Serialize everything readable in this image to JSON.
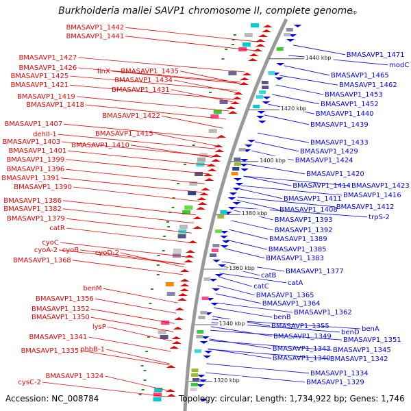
{
  "title": "Burkholderia mallei SAVP1 chromosome II, complete genome",
  "title_unit": "bp",
  "footer": {
    "accession": "Accession: NC_008784",
    "summary": "Topology: circular; Length: 1,734,922 bp; Genes: 1,746"
  },
  "colors": {
    "forward": "#ee0000",
    "reverse": "#0000ee",
    "backbone": "#999999",
    "tick": "#228822"
  },
  "scale_ticks": [
    {
      "label": "1440 kbp",
      "xm": 0.743,
      "ym": 0.148
    },
    {
      "label": "1420 kbp",
      "xm": 0.683,
      "ym": 0.272
    },
    {
      "label": "1400 kbp",
      "xm": 0.632,
      "ym": 0.398
    },
    {
      "label": "1380 kbp",
      "xm": 0.588,
      "ym": 0.527
    },
    {
      "label": "1360 kbp",
      "xm": 0.557,
      "ym": 0.66
    },
    {
      "label": "1340 kbp",
      "xm": 0.533,
      "ym": 0.795
    },
    {
      "label": "1320 kbp",
      "xm": 0.52,
      "ym": 0.933
    }
  ],
  "left_labels": [
    {
      "text": "BMASAVP1_1442",
      "xm": 0.302,
      "ym": 0.072
    },
    {
      "text": "BMASAVP1_1441",
      "xm": 0.302,
      "ym": 0.093
    },
    {
      "text": "BMASAVP1_1427",
      "xm": 0.187,
      "ym": 0.145
    },
    {
      "text": "BMASAVP1_1426",
      "xm": 0.187,
      "ym": 0.17
    },
    {
      "text": "BMASAVP1_1425",
      "xm": 0.167,
      "ym": 0.19
    },
    {
      "text": "BMASAVP1_1421",
      "xm": 0.167,
      "ym": 0.212
    },
    {
      "text": "BMASAVP1_1419",
      "xm": 0.183,
      "ym": 0.24
    },
    {
      "text": "BMASAVP1_1418",
      "xm": 0.205,
      "ym": 0.26
    },
    {
      "text": "BMASAVP1_1407",
      "xm": 0.152,
      "ym": 0.307
    },
    {
      "text": "dehII-1",
      "xm": 0.138,
      "ym": 0.332
    },
    {
      "text": "BMASAVP1_1403",
      "xm": 0.147,
      "ym": 0.35
    },
    {
      "text": "BMASAVP1_1401",
      "xm": 0.162,
      "ym": 0.372
    },
    {
      "text": "BMASAVP1_1399",
      "xm": 0.157,
      "ym": 0.393
    },
    {
      "text": "BMASAVP1_1396",
      "xm": 0.157,
      "ym": 0.417
    },
    {
      "text": "BMASAVP1_1391",
      "xm": 0.145,
      "ym": 0.438
    },
    {
      "text": "BMASAVP1_1390",
      "xm": 0.175,
      "ym": 0.46
    },
    {
      "text": "BMASAVP1_1386",
      "xm": 0.15,
      "ym": 0.493
    },
    {
      "text": "BMASAVP1_1382",
      "xm": 0.15,
      "ym": 0.513
    },
    {
      "text": "BMASAVP1_1379",
      "xm": 0.158,
      "ym": 0.537
    },
    {
      "text": "catR",
      "xm": 0.158,
      "ym": 0.56
    },
    {
      "text": "cyoC",
      "xm": 0.143,
      "ym": 0.595
    },
    {
      "text": "cyoA-2",
      "xm": 0.14,
      "ym": 0.613
    },
    {
      "text": "cyoB",
      "xm": 0.192,
      "ym": 0.613
    },
    {
      "text": "cyoD-2",
      "xm": 0.29,
      "ym": 0.62
    },
    {
      "text": "BMASAVP1_1368",
      "xm": 0.173,
      "ym": 0.638
    },
    {
      "text": "benM",
      "xm": 0.248,
      "ym": 0.707
    },
    {
      "text": "BMASAVP1_1356",
      "xm": 0.228,
      "ym": 0.732
    },
    {
      "text": "BMASAVP1_1352",
      "xm": 0.218,
      "ym": 0.757
    },
    {
      "text": "BMASAVP1_1350",
      "xm": 0.218,
      "ym": 0.777
    },
    {
      "text": "lysP",
      "xm": 0.258,
      "ym": 0.8
    },
    {
      "text": "BMASAVP1_1341",
      "xm": 0.212,
      "ym": 0.825
    },
    {
      "text": "BMASAVP1_1335",
      "xm": 0.192,
      "ym": 0.858
    },
    {
      "text": "phbB-1",
      "xm": 0.255,
      "ym": 0.855
    },
    {
      "text": "BMASAVP1_1324",
      "xm": 0.252,
      "ym": 0.92
    },
    {
      "text": "cysC-2",
      "xm": 0.1,
      "ym": 0.935
    }
  ],
  "inner_left_labels": [
    {
      "text": "linX",
      "xm": 0.268,
      "ym": 0.178
    },
    {
      "text": "BMASAVP1_1435",
      "xm": 0.435,
      "ym": 0.178
    },
    {
      "text": "BMASAVP1_1434",
      "xm": 0.42,
      "ym": 0.2
    },
    {
      "text": "BMASAVP1_1431",
      "xm": 0.413,
      "ym": 0.223
    },
    {
      "text": "BMASAVP1_1422",
      "xm": 0.39,
      "ym": 0.287
    },
    {
      "text": "BMASAVP1_1415",
      "xm": 0.373,
      "ym": 0.33
    },
    {
      "text": "BMASAVP1_1410",
      "xm": 0.315,
      "ym": 0.358
    }
  ],
  "right_labels": [
    {
      "text": "BMASAVP1_1471",
      "xm": 0.843,
      "ym": 0.138
    },
    {
      "text": "modC",
      "xm": 0.947,
      "ym": 0.163
    },
    {
      "text": "BMASAVP1_1465",
      "xm": 0.805,
      "ym": 0.188
    },
    {
      "text": "BMASAVP1_1462",
      "xm": 0.825,
      "ym": 0.212
    },
    {
      "text": "BMASAVP1_1453",
      "xm": 0.79,
      "ym": 0.235
    },
    {
      "text": "BMASAVP1_1452",
      "xm": 0.78,
      "ym": 0.258
    },
    {
      "text": "BMASAVP1_1440",
      "xm": 0.768,
      "ym": 0.282
    },
    {
      "text": "BMASAVP1_1439",
      "xm": 0.755,
      "ym": 0.308
    },
    {
      "text": "BMASAVP1_1433",
      "xm": 0.755,
      "ym": 0.352
    },
    {
      "text": "BMASAVP1_1429",
      "xm": 0.73,
      "ym": 0.373
    },
    {
      "text": "BMASAVP1_1424",
      "xm": 0.718,
      "ym": 0.395
    },
    {
      "text": "BMASAVP1_1420",
      "xm": 0.745,
      "ym": 0.428
    },
    {
      "text": "BMASAVP1_1414",
      "xm": 0.712,
      "ym": 0.457
    },
    {
      "text": "BMASAVP1_1423",
      "xm": 0.855,
      "ym": 0.457
    },
    {
      "text": "BMASAVP1_1416",
      "xm": 0.835,
      "ym": 0.48
    },
    {
      "text": "BMASAVP1_1411",
      "xm": 0.69,
      "ym": 0.488
    },
    {
      "text": "BMASAVP1_1412",
      "xm": 0.818,
      "ym": 0.508
    },
    {
      "text": "BMASAVP1_1408",
      "xm": 0.68,
      "ym": 0.515
    },
    {
      "text": "trpS-2",
      "xm": 0.897,
      "ym": 0.533
    },
    {
      "text": "BMASAVP1_1393",
      "xm": 0.668,
      "ym": 0.54
    },
    {
      "text": "BMASAVP1_1392",
      "xm": 0.668,
      "ym": 0.565
    },
    {
      "text": "BMASAVP1_1389",
      "xm": 0.655,
      "ym": 0.587
    },
    {
      "text": "BMASAVP1_1385",
      "xm": 0.653,
      "ym": 0.612
    },
    {
      "text": "BMASAVP1_1383",
      "xm": 0.647,
      "ym": 0.633
    },
    {
      "text": "BMASAVP1_1377",
      "xm": 0.695,
      "ym": 0.665
    },
    {
      "text": "catB",
      "xm": 0.635,
      "ym": 0.675
    },
    {
      "text": "catA",
      "xm": 0.7,
      "ym": 0.693
    },
    {
      "text": "catC",
      "xm": 0.617,
      "ym": 0.702
    },
    {
      "text": "BMASAVP1_1365",
      "xm": 0.623,
      "ym": 0.723
    },
    {
      "text": "BMASAVP1_1364",
      "xm": 0.638,
      "ym": 0.743
    },
    {
      "text": "BMASAVP1_1362",
      "xm": 0.715,
      "ym": 0.765
    },
    {
      "text": "benB",
      "xm": 0.665,
      "ym": 0.777
    },
    {
      "text": "BMASAVP1_1355",
      "xm": 0.66,
      "ym": 0.798
    },
    {
      "text": "benA",
      "xm": 0.88,
      "ym": 0.805
    },
    {
      "text": "benD",
      "xm": 0.83,
      "ym": 0.813
    },
    {
      "text": "BMASAVP1_1349",
      "xm": 0.665,
      "ym": 0.823
    },
    {
      "text": "BMASAVP1_1351",
      "xm": 0.835,
      "ym": 0.832
    },
    {
      "text": "BMASAVP1_1343",
      "xm": 0.663,
      "ym": 0.853
    },
    {
      "text": "BMASAVP1_1345",
      "xm": 0.81,
      "ym": 0.857
    },
    {
      "text": "BMASAVP1_1340",
      "xm": 0.663,
      "ym": 0.877
    },
    {
      "text": "BMASAVP1_1342",
      "xm": 0.803,
      "ym": 0.878
    },
    {
      "text": "BMASAVP1_1334",
      "xm": 0.755,
      "ym": 0.913
    },
    {
      "text": "BMASAVP1_1329",
      "xm": 0.745,
      "ym": 0.935
    }
  ]
}
